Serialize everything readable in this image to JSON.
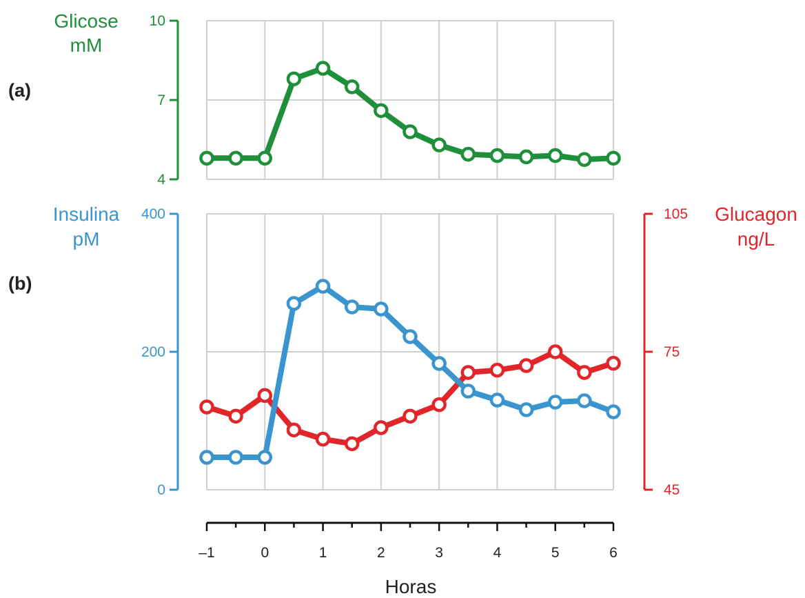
{
  "panels": {
    "a_label": "(a)",
    "b_label": "(b)"
  },
  "colors": {
    "glucose": "#1f8f3a",
    "insulin": "#3a95cf",
    "glucagon": "#e0262a",
    "grid": "#cfcfcf",
    "axis": "#111111"
  },
  "chart_data": [
    {
      "type": "line",
      "panel": "(a)",
      "ylabel_line1": "Glicose",
      "ylabel_line2": "mM",
      "ylim": [
        4,
        10
      ],
      "yticks": [
        4,
        7,
        10
      ],
      "grid": true,
      "x": [
        -1,
        -0.5,
        0,
        0.5,
        1,
        1.5,
        2,
        2.5,
        3,
        3.5,
        4,
        4.5,
        5,
        5.5,
        6
      ],
      "series": [
        {
          "values": [
            4.8,
            4.8,
            4.8,
            7.8,
            8.2,
            7.5,
            6.6,
            5.8,
            5.3,
            4.95,
            4.9,
            4.85,
            4.9,
            4.75,
            4.8
          ]
        }
      ]
    },
    {
      "type": "line",
      "panel": "(b)",
      "xlabel": "Horas",
      "xticks": [
        -1,
        0,
        1,
        2,
        3,
        4,
        5,
        6
      ],
      "xtick_labels": [
        "–1",
        "0",
        "1",
        "2",
        "3",
        "4",
        "5",
        "6"
      ],
      "xlim": [
        -1,
        6
      ],
      "grid": true,
      "x": [
        -1,
        -0.5,
        0,
        0.5,
        1,
        1.5,
        2,
        2.5,
        3,
        3.5,
        4,
        4.5,
        5,
        5.5,
        6
      ],
      "left_axis": {
        "label_line1": "Insulina",
        "label_line2": "pM",
        "ylim": [
          0,
          400
        ],
        "yticks": [
          0,
          200,
          400
        ]
      },
      "right_axis": {
        "label_line1": "Glucagon",
        "label_line2": "ng/L",
        "ylim": [
          45,
          105
        ],
        "yticks": [
          45,
          75,
          105
        ]
      },
      "series": [
        {
          "axis": "left",
          "values": [
            47,
            47,
            47,
            270,
            295,
            265,
            262,
            222,
            183,
            143,
            130,
            116,
            127,
            129,
            113
          ]
        },
        {
          "axis": "right",
          "values": [
            63,
            61,
            65.5,
            58,
            56,
            55,
            58.5,
            61,
            63.5,
            70.5,
            71,
            72,
            75,
            70.5,
            72.5
          ]
        }
      ]
    }
  ]
}
